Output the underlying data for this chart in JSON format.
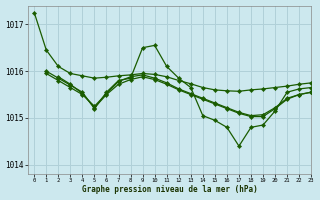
{
  "title": "Graphe pression niveau de la mer (hPa)",
  "background_color": "#cce8ee",
  "grid_color": "#b0d0d8",
  "line_color": "#1a5c00",
  "xlim": [
    -0.5,
    23
  ],
  "ylim": [
    1013.8,
    1017.4
  ],
  "yticks": [
    1014,
    1015,
    1016,
    1017
  ],
  "xticks": [
    0,
    1,
    2,
    3,
    4,
    5,
    6,
    7,
    8,
    9,
    10,
    11,
    12,
    13,
    14,
    15,
    16,
    17,
    18,
    19,
    20,
    21,
    22,
    23
  ],
  "series": [
    {
      "x": [
        0,
        1,
        2,
        3,
        4,
        5,
        6,
        7,
        8,
        9,
        10,
        11,
        12,
        13,
        14,
        15,
        16,
        17,
        18,
        19,
        20,
        21,
        22,
        23
      ],
      "y": [
        1017.25,
        1016.45,
        1016.1,
        1015.95,
        1015.9,
        1015.85,
        1015.87,
        1015.9,
        1015.92,
        1015.95,
        1015.93,
        1015.88,
        1015.8,
        1015.73,
        1015.65,
        1015.6,
        1015.58,
        1015.57,
        1015.6,
        1015.62,
        1015.65,
        1015.68,
        1015.72,
        1015.75
      ]
    },
    {
      "x": [
        1,
        2,
        3,
        4,
        5,
        6,
        7,
        8,
        9,
        10,
        11,
        12,
        13,
        14,
        15,
        16,
        17,
        18,
        19,
        20,
        21,
        22,
        23
      ],
      "y": [
        1016.0,
        1015.85,
        1015.7,
        1015.55,
        1015.2,
        1015.55,
        1015.8,
        1015.85,
        1016.5,
        1016.55,
        1016.1,
        1015.85,
        1015.65,
        1015.05,
        1014.95,
        1014.8,
        1014.4,
        1014.8,
        1014.85,
        1015.15,
        1015.55,
        1015.62,
        1015.65
      ]
    },
    {
      "x": [
        1,
        2,
        3,
        4,
        5,
        6,
        7,
        8,
        9,
        10,
        11,
        12,
        13,
        14,
        15,
        16,
        17,
        18,
        19,
        20,
        21,
        22,
        23
      ],
      "y": [
        1015.95,
        1015.8,
        1015.65,
        1015.5,
        1015.25,
        1015.52,
        1015.78,
        1015.88,
        1015.92,
        1015.85,
        1015.75,
        1015.62,
        1015.52,
        1015.42,
        1015.32,
        1015.22,
        1015.12,
        1015.05,
        1015.07,
        1015.22,
        1015.42,
        1015.5,
        1015.55
      ]
    },
    {
      "x": [
        2,
        3,
        4,
        5,
        6,
        7,
        8,
        9,
        10,
        11,
        12,
        13,
        14,
        15,
        16,
        17,
        18,
        19,
        20,
        21,
        22,
        23
      ],
      "y": [
        1015.88,
        1015.72,
        1015.52,
        1015.22,
        1015.5,
        1015.72,
        1015.82,
        1015.88,
        1015.82,
        1015.72,
        1015.6,
        1015.5,
        1015.4,
        1015.3,
        1015.2,
        1015.1,
        1015.03,
        1015.03,
        1015.2,
        1015.4,
        1015.5,
        1015.55
      ]
    }
  ]
}
